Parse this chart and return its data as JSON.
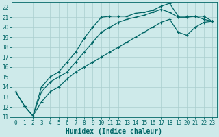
{
  "xlabel": "Humidex (Indice chaleur)",
  "bg_color": "#ceeaea",
  "grid_color": "#aacece",
  "line_color": "#006666",
  "xlim": [
    -0.5,
    23.5
  ],
  "ylim": [
    11,
    22.5
  ],
  "xticks": [
    0,
    1,
    2,
    3,
    4,
    5,
    6,
    7,
    8,
    9,
    10,
    11,
    12,
    13,
    14,
    15,
    16,
    17,
    18,
    19,
    20,
    21,
    22,
    23
  ],
  "yticks": [
    11,
    12,
    13,
    14,
    15,
    16,
    17,
    18,
    19,
    20,
    21,
    22
  ],
  "line1_x": [
    0,
    1,
    2,
    3,
    4,
    5,
    6,
    7,
    8,
    9,
    10,
    11,
    12,
    13,
    14,
    15,
    16,
    17,
    18,
    19,
    20,
    21,
    22,
    23
  ],
  "line1_y": [
    13.5,
    12.1,
    11.1,
    14.0,
    15.0,
    15.5,
    16.5,
    17.5,
    18.9,
    20.0,
    21.0,
    21.1,
    21.1,
    21.1,
    21.4,
    21.5,
    21.7,
    22.1,
    22.4,
    21.1,
    21.1,
    21.1,
    21.1,
    20.6
  ],
  "line2_x": [
    0,
    1,
    2,
    3,
    4,
    5,
    6,
    7,
    8,
    9,
    10,
    11,
    12,
    13,
    14,
    15,
    16,
    17,
    18,
    19,
    20,
    21,
    22,
    23
  ],
  "line2_y": [
    13.5,
    12.1,
    11.1,
    12.5,
    13.5,
    14.0,
    14.8,
    15.5,
    16.0,
    16.5,
    17.0,
    17.5,
    18.0,
    18.5,
    19.0,
    19.5,
    20.0,
    20.5,
    20.8,
    19.5,
    19.2,
    20.0,
    20.5,
    20.6
  ],
  "line3_x": [
    0,
    1,
    2,
    3,
    4,
    5,
    6,
    7,
    8,
    9,
    10,
    11,
    12,
    13,
    14,
    15,
    16,
    17,
    18,
    19,
    20,
    21,
    22,
    23
  ],
  "line3_y": [
    13.5,
    12.1,
    11.1,
    13.5,
    14.5,
    15.0,
    15.5,
    16.5,
    17.5,
    18.5,
    19.5,
    20.0,
    20.5,
    20.8,
    21.0,
    21.2,
    21.5,
    21.8,
    21.5,
    21.0,
    21.0,
    21.1,
    20.8,
    20.6
  ],
  "marker_size": 3.5,
  "linewidth": 0.9,
  "font_size_label": 7,
  "font_size_tick": 5.5
}
